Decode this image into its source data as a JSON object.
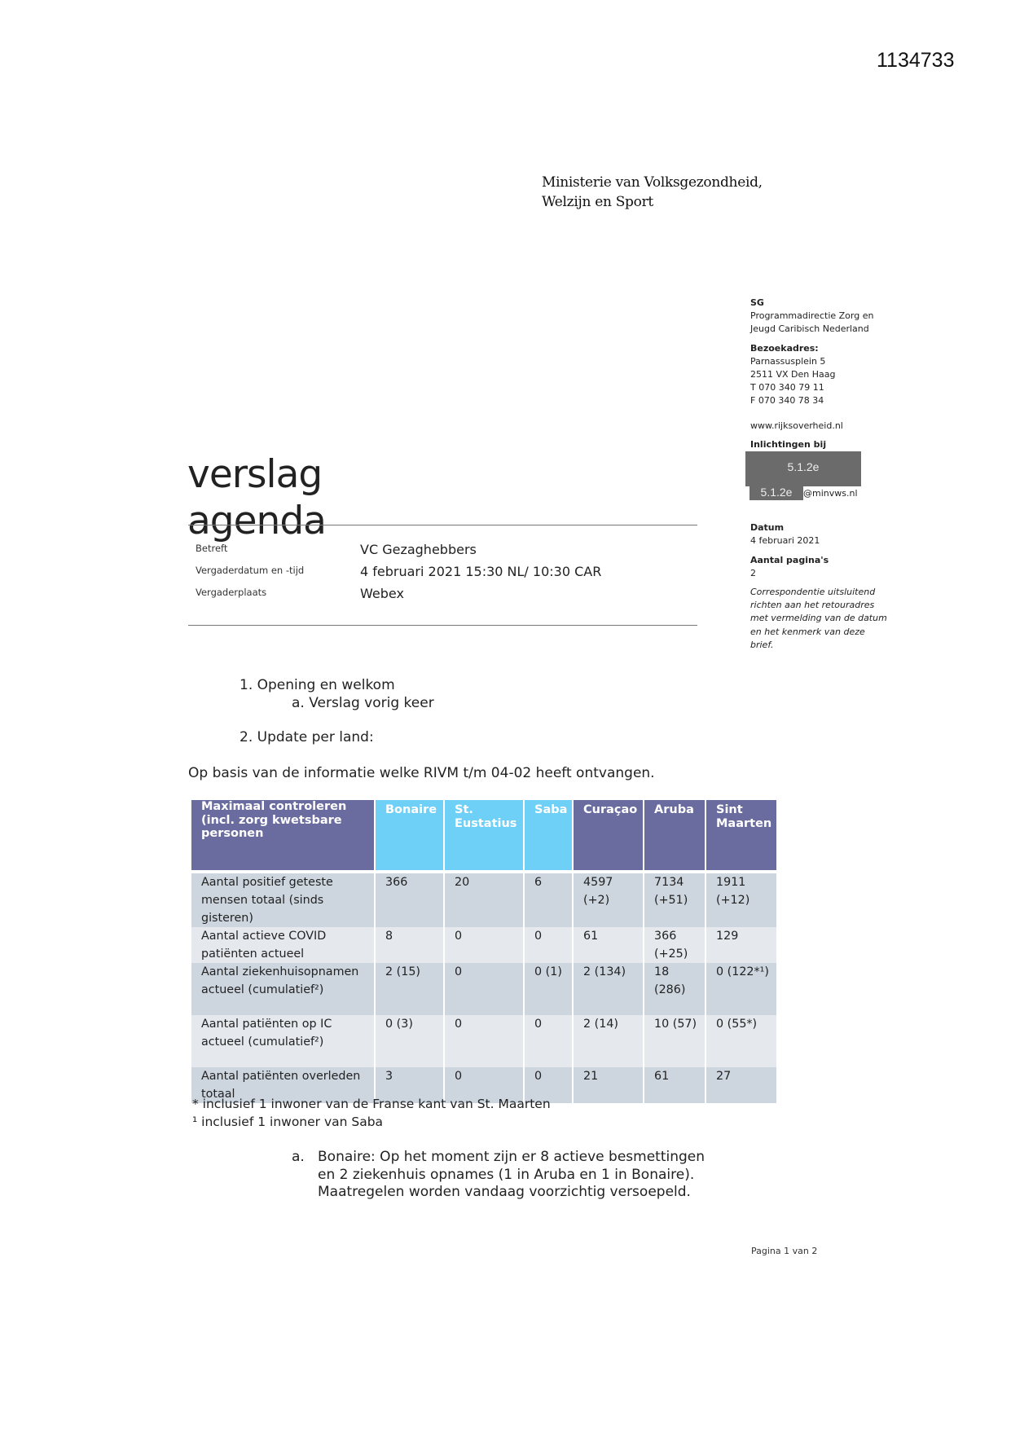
{
  "document_id": "1134733",
  "ministry": [
    "Ministerie van Volksgezondheid,",
    "Welzijn en Sport"
  ],
  "sidebar": {
    "unit_title": "SG",
    "unit_lines": [
      "Programmadirectie Zorg en",
      "Jeugd Caribisch Nederland"
    ],
    "address_label": "Bezoekadres:",
    "address_lines": [
      "Parnassusplein 5",
      "2511 VX  Den Haag",
      "T  070 340 79 11",
      "F  070 340 78 34"
    ],
    "website": "www.rijksoverheid.nl",
    "info_label": "Inlichtingen bij",
    "redaction_1": "5.1.2e",
    "redaction_2": "5.1.2e",
    "email_suffix": "@minvws.nl",
    "date_label": "Datum",
    "date_value": "4 februari 2021",
    "pages_label": "Aantal pagina's",
    "pages_value": "2",
    "note_lines": [
      "Correspondentie uitsluitend",
      "richten aan het retouradres",
      "met vermelding van de datum",
      "en het kenmerk van deze",
      "brief."
    ]
  },
  "title_1": "verslag",
  "title_2": "agenda",
  "meta": [
    {
      "label": "Betreft",
      "value": "VC Gezaghebbers"
    },
    {
      "label": "Vergaderdatum en -tijd",
      "value": "4 februari 2021 15:30 NL/ 10:30 CAR"
    },
    {
      "label": "Vergaderplaats",
      "value": "Webex"
    }
  ],
  "agenda": {
    "item1": "1.  Opening en welkom",
    "item1a": "a.   Verslag vorig keer",
    "item2": "2.  Update per land:",
    "intro": "Op basis van de informatie welke RIVM t/m 04-02 heeft ontvangen."
  },
  "table": {
    "header": [
      "Maximaal controleren (incl. zorg kwetsbare personen",
      "Bonaire",
      "St. Eustatius",
      "Saba",
      "Curaçao",
      "Aruba",
      "Sint Maarten"
    ],
    "rows": [
      [
        "Aantal positief geteste mensen totaal (sinds gisteren)",
        "366",
        "20",
        "6",
        "4597 (+2)",
        "7134 (+51)",
        "1911 (+12)"
      ],
      [
        "Aantal actieve COVID patiënten actueel",
        "8",
        "0",
        "0",
        "61",
        "366 (+25)",
        "129"
      ],
      [
        "Aantal ziekenhuisopnamen actueel (cumulatief²)",
        "2 (15)",
        "0",
        "0 (1)",
        "2 (134)",
        "18 (286)",
        "0 (122*¹)"
      ],
      [
        "Aantal patiënten op IC actueel (cumulatief²)",
        "0 (3)",
        "0",
        "0",
        "2 (14)",
        "10 (57)",
        "0 (55*)"
      ],
      [
        "Aantal patiënten overleden totaal",
        "3",
        "0",
        "0",
        "21",
        "61",
        "27"
      ]
    ],
    "header_color_dark": "#6a6b9e",
    "header_color_light": "#6fd0f7"
  },
  "footnotes": [
    "* inclusief 1 inwoner van de Franse kant van St. Maarten",
    "¹ inclusief 1 inwoner van Saba"
  ],
  "bonaire": {
    "marker": "a.",
    "lines": [
      "Bonaire: Op het moment zijn er 8 actieve besmettingen",
      "en 2 ziekenhuis opnames (1 in Aruba en 1 in Bonaire).",
      "Maatregelen worden vandaag voorzichtig versoepeld."
    ]
  },
  "page_number": "Pagina 1 van 2"
}
